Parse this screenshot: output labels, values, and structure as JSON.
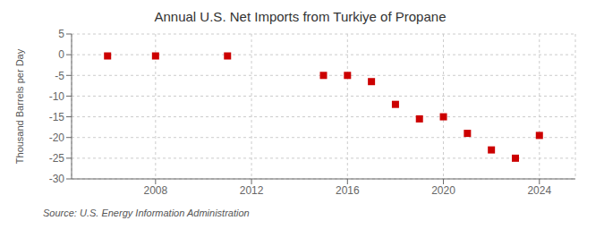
{
  "chart_data": {
    "type": "scatter",
    "title": "Annual U.S. Net Imports from Turkiye of Propane",
    "ylabel": "Thousand Barrels per Day",
    "annotation": "Source: U.S. Energy Information Administration",
    "x": [
      2006,
      2008,
      2011,
      2015,
      2016,
      2017,
      2018,
      2019,
      2020,
      2021,
      2022,
      2023,
      2024
    ],
    "values": [
      -0.3,
      -0.3,
      -0.3,
      -5.0,
      -5.0,
      -6.5,
      -12.0,
      -15.5,
      -15.0,
      -19.0,
      -23.0,
      -25.0,
      -19.5
    ],
    "color": "#cc0000",
    "marker": "square",
    "xlim": [
      2004.5,
      2025.5
    ],
    "xticks": [
      2008,
      2012,
      2016,
      2020,
      2024
    ],
    "ylim": [
      -30,
      5
    ],
    "yticks": [
      5,
      0,
      -5,
      -10,
      -15,
      -20,
      -25,
      -30
    ],
    "grid": true
  }
}
